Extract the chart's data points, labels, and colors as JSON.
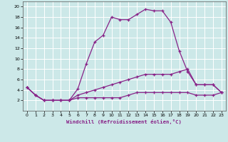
{
  "background_color": "#cce8e8",
  "grid_color": "#ffffff",
  "line_color": "#882288",
  "xlabel": "Windchill (Refroidissement éolien,°C)",
  "xlim": [
    -0.5,
    23.5
  ],
  "ylim": [
    0,
    21
  ],
  "xticks": [
    0,
    1,
    2,
    3,
    4,
    5,
    6,
    7,
    8,
    9,
    10,
    11,
    12,
    13,
    14,
    15,
    16,
    17,
    18,
    19,
    20,
    21,
    22,
    23
  ],
  "yticks": [
    2,
    4,
    6,
    8,
    10,
    12,
    14,
    16,
    18,
    20
  ],
  "series1_x": [
    0,
    1,
    2,
    3,
    4,
    5,
    6,
    7,
    8,
    9,
    10,
    11,
    12,
    13,
    14,
    15,
    16,
    17,
    18,
    19,
    20,
    21,
    22,
    23
  ],
  "series1_y": [
    4.5,
    3.0,
    2.0,
    2.0,
    2.0,
    2.0,
    4.2,
    9.0,
    13.2,
    14.5,
    18.0,
    17.5,
    17.5,
    18.5,
    19.5,
    19.2,
    19.2,
    17.0,
    11.5,
    7.5,
    5.0,
    5.0,
    5.0,
    3.5
  ],
  "series2_x": [
    0,
    1,
    2,
    3,
    4,
    5,
    6,
    7,
    8,
    9,
    10,
    11,
    12,
    13,
    14,
    15,
    16,
    17,
    18,
    19,
    20,
    21,
    22,
    23
  ],
  "series2_y": [
    4.5,
    3.0,
    2.0,
    2.0,
    2.0,
    2.0,
    3.0,
    3.5,
    4.0,
    4.5,
    5.0,
    5.5,
    6.0,
    6.5,
    7.0,
    7.0,
    7.0,
    7.0,
    7.5,
    8.0,
    5.0,
    5.0,
    5.0,
    3.5
  ],
  "series3_x": [
    0,
    1,
    2,
    3,
    4,
    5,
    6,
    7,
    8,
    9,
    10,
    11,
    12,
    13,
    14,
    15,
    16,
    17,
    18,
    19,
    20,
    21,
    22,
    23
  ],
  "series3_y": [
    4.5,
    3.0,
    2.0,
    2.0,
    2.0,
    2.0,
    2.5,
    2.5,
    2.5,
    2.5,
    2.5,
    2.5,
    3.0,
    3.5,
    3.5,
    3.5,
    3.5,
    3.5,
    3.5,
    3.5,
    3.0,
    3.0,
    3.0,
    3.5
  ]
}
